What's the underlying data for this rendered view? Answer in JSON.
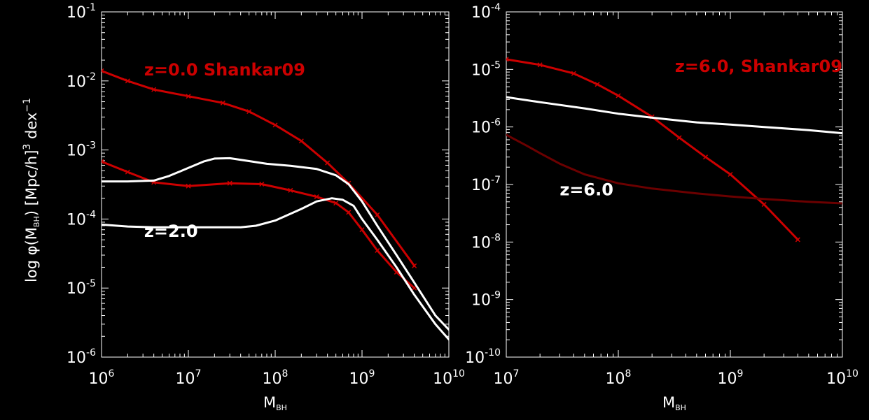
{
  "figure": {
    "ylabel_parts": [
      "log ",
      "φ(M",
      "BH",
      ")  [Mpc/h]",
      "3",
      " dex",
      "−1"
    ],
    "background": "#000000"
  },
  "chart_data": [
    {
      "type": "line",
      "xlabel": "M",
      "xlabel_sub": "BH",
      "xscale": "log",
      "yscale": "log",
      "xlim": [
        1000000.0,
        10000000000.0
      ],
      "ylim": [
        1e-06,
        0.1
      ],
      "x_ticks": [
        6,
        7,
        8,
        9,
        10
      ],
      "y_ticks": [
        -6,
        -5,
        -4,
        -3,
        -2,
        -1
      ],
      "tick_base": "10",
      "annotations": [
        {
          "text": "z=0.0 Shankar09",
          "color": "#cc0000",
          "x": 3100000.0,
          "y": 0.012
        },
        {
          "text": "z=2.0",
          "color": "#ffffff",
          "x": 3100000.0,
          "y": 5.5e-05
        }
      ],
      "series": [
        {
          "color": "#cc0000",
          "markers": true,
          "x": [
            1000000.0,
            2000000.0,
            4000000.0,
            10000000.0,
            25000000.0,
            50000000.0,
            100000000.0,
            200000000.0,
            400000000.0,
            700000000.0,
            1500000000.0,
            4000000000.0
          ],
          "y": [
            0.014,
            0.01,
            0.0075,
            0.006,
            0.0048,
            0.0036,
            0.0023,
            0.00135,
            0.00065,
            0.00033,
            0.000115,
            2.1e-05
          ]
        },
        {
          "color": "#cc0000",
          "markers": true,
          "x": [
            1000000.0,
            2000000.0,
            4000000.0,
            10000000.0,
            30000000.0,
            70000000.0,
            150000000.0,
            300000000.0,
            500000000.0,
            700000000.0,
            1000000000.0,
            1500000000.0,
            2500000000.0,
            4000000000.0
          ],
          "y": [
            0.00068,
            0.00048,
            0.00034,
            0.0003,
            0.00033,
            0.00032,
            0.00026,
            0.00021,
            0.00017,
            0.000125,
            7e-05,
            3.5e-05,
            1.7e-05,
            1e-05
          ]
        },
        {
          "color": "#ffffff",
          "markers": false,
          "x": [
            1000000.0,
            2000000.0,
            4000000.0,
            6000000.0,
            10000000.0,
            15000000.0,
            20000000.0,
            30000000.0,
            50000000.0,
            80000000.0,
            150000000.0,
            300000000.0,
            500000000.0,
            700000000.0,
            1000000000.0,
            1500000000.0,
            2500000000.0,
            4000000000.0,
            7000000000.0,
            10000000000.0
          ],
          "y": [
            0.00035,
            0.00035,
            0.00036,
            0.00042,
            0.00055,
            0.00068,
            0.00075,
            0.00076,
            0.00069,
            0.00063,
            0.00059,
            0.00053,
            0.00043,
            0.00032,
            0.00018,
            8e-05,
            3e-05,
            1.2e-05,
            4e-06,
            2.5e-06
          ]
        },
        {
          "color": "#ffffff",
          "markers": false,
          "x": [
            1000000.0,
            2000000.0,
            4000000.0,
            10000000.0,
            20000000.0,
            40000000.0,
            60000000.0,
            100000000.0,
            200000000.0,
            300000000.0,
            450000000.0,
            600000000.0,
            800000000.0,
            1000000000.0,
            1500000000.0,
            2500000000.0,
            4000000000.0,
            7000000000.0,
            10000000000.0
          ],
          "y": [
            8.3e-05,
            7.8e-05,
            7.6e-05,
            7.6e-05,
            7.6e-05,
            7.6e-05,
            8e-05,
            9.5e-05,
            0.00014,
            0.00018,
            0.0002,
            0.00019,
            0.000155,
            0.0001,
            5e-05,
            2e-05,
            8e-06,
            3e-06,
            1.8e-06
          ]
        }
      ]
    },
    {
      "type": "line",
      "xlabel": "M",
      "xlabel_sub": "BH",
      "xscale": "log",
      "yscale": "log",
      "xlim": [
        10000000.0,
        10000000000.0
      ],
      "ylim": [
        1e-10,
        0.0001
      ],
      "x_ticks": [
        7,
        8,
        9,
        10
      ],
      "y_ticks": [
        -10,
        -9,
        -8,
        -7,
        -6,
        -5,
        -4
      ],
      "tick_base": "10",
      "annotations": [
        {
          "text": "z=6.0, Shankar09",
          "color": "#cc0000",
          "x": 320000000.0,
          "y": 9e-06
        },
        {
          "text": "z=6.0",
          "color": "#ffffff",
          "x": 30000000.0,
          "y": 6.5e-08
        }
      ],
      "series": [
        {
          "color": "#cc0000",
          "markers": true,
          "x": [
            10000000.0,
            20000000.0,
            40000000.0,
            65000000.0,
            100000000.0,
            200000000.0,
            350000000.0,
            600000000.0,
            1000000000.0,
            2000000000.0,
            4000000000.0
          ],
          "y": [
            1.5e-05,
            1.2e-05,
            8.5e-06,
            5.5e-06,
            3.5e-06,
            1.5e-06,
            6.5e-07,
            3e-07,
            1.5e-07,
            4.5e-08,
            1.1e-08
          ]
        },
        {
          "color": "#ffffff",
          "markers": false,
          "x": [
            10000000.0,
            20000000.0,
            50000000.0,
            100000000.0,
            200000000.0,
            500000000.0,
            1000000000.0,
            2000000000.0,
            5000000000.0,
            10000000000.0
          ],
          "y": [
            3.3e-06,
            2.7e-06,
            2.1e-06,
            1.7e-06,
            1.45e-06,
            1.2e-06,
            1.1e-06,
            1e-06,
            8.8e-07,
            7.8e-07
          ]
        },
        {
          "color": "#6b0000",
          "markers": false,
          "x": [
            10000000.0,
            15000000.0,
            20000000.0,
            30000000.0,
            50000000.0,
            100000000.0,
            200000000.0,
            500000000.0,
            1000000000.0,
            2000000000.0,
            5000000000.0,
            10000000000.0
          ],
          "y": [
            7.3e-07,
            4.8e-07,
            3.5e-07,
            2.3e-07,
            1.5e-07,
            1.05e-07,
            8.5e-08,
            7e-08,
            6.2e-08,
            5.6e-08,
            5e-08,
            4.7e-08
          ]
        }
      ]
    }
  ]
}
